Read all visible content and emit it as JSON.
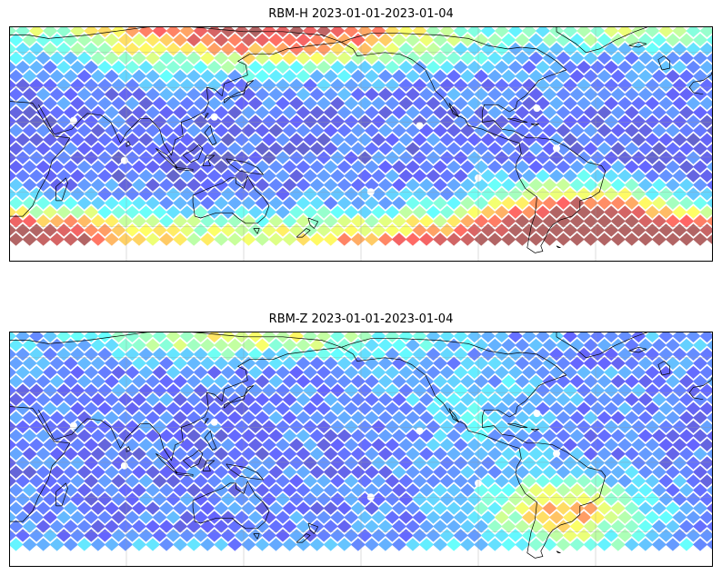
{
  "figure": {
    "panels": [
      {
        "title": "RBM-H 2023-01-01-2023-01-04",
        "colormap": "jet",
        "alpha": 0.6,
        "field": {
          "base": 0.18,
          "features": [
            {
              "lon": 150,
              "lat": 72,
              "slon": 70,
              "slat": 14,
              "amp": 0.8
            },
            {
              "lon": -80,
              "lat": -55,
              "slon": 120,
              "slat": 16,
              "amp": 0.82
            },
            {
              "lon": -50,
              "lat": -30,
              "slon": 30,
              "slat": 12,
              "amp": 0.55
            },
            {
              "lon": 30,
              "lat": -45,
              "slon": 60,
              "slat": 12,
              "amp": 0.45
            },
            {
              "lon": -20,
              "lat": 72,
              "slon": 40,
              "slat": 8,
              "amp": 0.3
            },
            {
              "lon": 75,
              "lat": 0,
              "slon": 140,
              "slat": 30,
              "amp": -0.06
            }
          ],
          "noise": 0.1
        }
      },
      {
        "title": "RBM-Z 2023-01-01-2023-01-04",
        "colormap": "jet",
        "alpha": 0.6,
        "field": {
          "base": 0.2,
          "features": [
            {
              "lon": -55,
              "lat": -28,
              "slon": 30,
              "slat": 14,
              "amp": 0.55
            },
            {
              "lon": 140,
              "lat": 72,
              "slon": 60,
              "slat": 8,
              "amp": 0.4
            },
            {
              "lon": 0,
              "lat": -58,
              "slon": 160,
              "slat": 6,
              "amp": 0.38
            },
            {
              "lon": -100,
              "lat": 30,
              "slon": 30,
              "slat": 20,
              "amp": 0.12
            },
            {
              "lon": 75,
              "lat": 0,
              "slon": 140,
              "slat": 30,
              "amp": -0.05
            }
          ],
          "noise": 0.1
        }
      }
    ],
    "extent": {
      "lon_min": 20,
      "lon_max": 380,
      "lat_min": -60,
      "lat_max": 75,
      "data_lat_min": -52,
      "data_lat_max": 75
    },
    "gridlines": {
      "lon": [
        20,
        80,
        140,
        200,
        260,
        320
      ],
      "lat": [
        -40,
        -20,
        0,
        20,
        40,
        60
      ]
    },
    "gap_points": [
      [
        53,
        21
      ],
      [
        79,
        -2
      ],
      [
        125,
        23
      ],
      [
        230,
        18
      ],
      [
        260,
        -12
      ],
      [
        290,
        28
      ],
      [
        300,
        5
      ],
      [
        205,
        -20
      ]
    ]
  }
}
